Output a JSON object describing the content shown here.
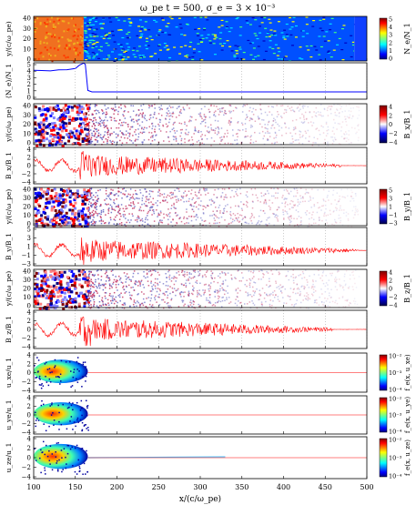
{
  "figure": {
    "title": "ω_pe t = 500, σ_e = 3 × 10⁻³",
    "xlabel": "x/(c/ω_pe)",
    "xticks": [
      "100",
      "150",
      "200",
      "250",
      "300",
      "350",
      "400",
      "450",
      "500"
    ]
  },
  "panels": [
    {
      "ylabel": "y/(c/ω_pe)",
      "yticks": [
        "0",
        "10",
        "20",
        "30",
        "40"
      ],
      "cbar_label": "N_e/N_1",
      "cbar_ticks": [
        "0",
        "1",
        "2",
        "3",
        "4",
        "5"
      ]
    },
    {
      "ylabel": "⟨N_e⟩/N_1",
      "yticks": [
        "0",
        "1",
        "2",
        "3",
        "4",
        "5"
      ]
    },
    {
      "ylabel": "y/(c/ω_pe)",
      "yticks": [
        "0",
        "10",
        "20",
        "30",
        "40"
      ],
      "cbar_label": "B_x/B_1",
      "cbar_ticks": [
        "−4",
        "−2",
        "0",
        "2",
        "4"
      ]
    },
    {
      "ylabel": "B_x/B_1",
      "yticks": [
        "−4",
        "−2",
        "0",
        "2",
        "4"
      ]
    },
    {
      "ylabel": "y/(c/ω_pe)",
      "yticks": [
        "0",
        "10",
        "20",
        "30",
        "40"
      ],
      "cbar_label": "B_y/B_1",
      "cbar_ticks": [
        "−3",
        "−1",
        "1",
        "3",
        "5"
      ]
    },
    {
      "ylabel": "B_y/B_1",
      "yticks": [
        "−3",
        "−1",
        "1",
        "3",
        "5"
      ]
    },
    {
      "ylabel": "y/(c/ω_pe)",
      "yticks": [
        "0",
        "10",
        "20",
        "30",
        "40"
      ],
      "cbar_label": "B_z/B_1",
      "cbar_ticks": [
        "−4",
        "−2",
        "0",
        "2",
        "4"
      ]
    },
    {
      "ylabel": "B_z/B_1",
      "yticks": [
        "−4",
        "−2",
        "0",
        "2",
        "4"
      ]
    },
    {
      "ylabel": "u_xe/u_1",
      "yticks": [
        "−4",
        "−2",
        "0",
        "2",
        "4"
      ],
      "cbar_label": "f_e(x, u_xe)",
      "cbar_ticks": [
        "10⁻⁴",
        "10⁻³",
        "10⁻²"
      ]
    },
    {
      "ylabel": "u_ye/u_1",
      "yticks": [
        "−4",
        "−2",
        "0",
        "2",
        "4"
      ],
      "cbar_label": "f_e(x, u_ye)",
      "cbar_ticks": [
        "10⁻⁴",
        "10⁻³",
        "10⁻²"
      ]
    },
    {
      "ylabel": "u_ze/u_1",
      "yticks": [
        "−4",
        "−2",
        "0",
        "2",
        "4"
      ],
      "cbar_label": "f_e(x, u_ze)",
      "cbar_ticks": [
        "10⁻⁴",
        "10⁻³",
        "10⁻²"
      ]
    }
  ],
  "chart_data": {
    "type": "line",
    "title": "ω_pe t = 500, σ_e = 3 × 10⁻³",
    "xlabel": "x/(c/ω_pe)",
    "xlim": [
      100,
      500
    ],
    "grid": true,
    "density_profile": {
      "ylabel": "⟨N_e⟩/N_1",
      "ylim": [
        0,
        5
      ],
      "x": [
        100,
        110,
        120,
        130,
        140,
        150,
        155,
        160,
        162,
        165,
        170,
        200,
        300,
        400,
        500
      ],
      "y": [
        3.9,
        3.9,
        3.95,
        4.0,
        4.1,
        4.2,
        4.6,
        4.9,
        4.8,
        1.2,
        1.0,
        1.0,
        1.0,
        1.0,
        1.0
      ]
    },
    "field_profiles": [
      {
        "name": "B_x/B_1",
        "ylim": [
          -5,
          5
        ],
        "noise_until": 470
      },
      {
        "name": "B_y/B_1",
        "ylim": [
          -4,
          6
        ],
        "noise_until": 490
      },
      {
        "name": "B_z/B_1",
        "ylim": [
          -5,
          5
        ],
        "noise_until": 460
      }
    ],
    "phase_space": [
      {
        "name": "f_e(x, u_xe)",
        "ylim": [
          -5,
          5
        ],
        "shock_x": 165
      },
      {
        "name": "f_e(x, u_ye)",
        "ylim": [
          -5,
          5
        ],
        "shock_x": 165
      },
      {
        "name": "f_e(x, u_ze)",
        "ylim": [
          -5,
          5
        ],
        "shock_x": 165
      }
    ]
  }
}
